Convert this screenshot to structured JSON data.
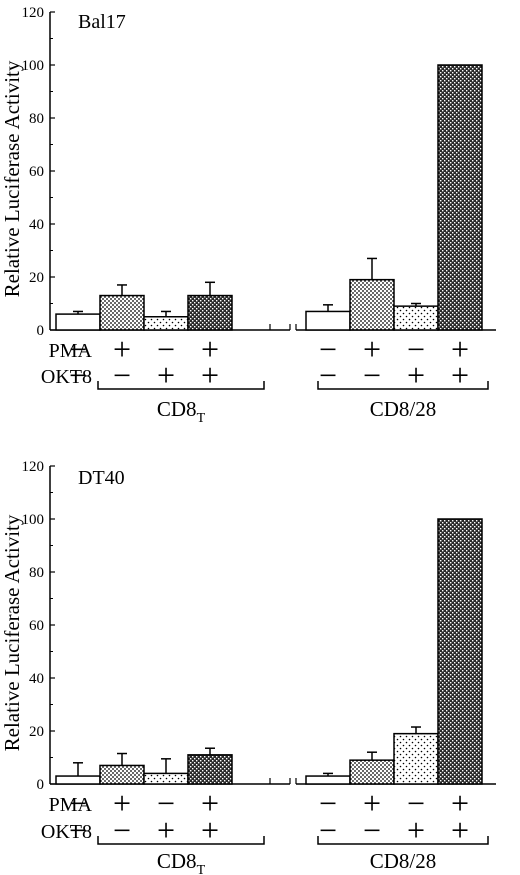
{
  "chart_data": [
    {
      "type": "bar",
      "title": "Bal17",
      "ylabel": "Relative Luciferase Activity",
      "ylim": [
        0,
        120
      ],
      "yticks": [
        0,
        20,
        40,
        60,
        80,
        100,
        120
      ],
      "row_labels": [
        "PMA",
        "OKT8"
      ],
      "groups": [
        {
          "name": "CD8",
          "subscript": "T",
          "bars": [
            {
              "value": 6,
              "error": 1,
              "pattern": "white",
              "pma": "−",
              "okt8": "−"
            },
            {
              "value": 13,
              "error": 4,
              "pattern": "dense-dots",
              "pma": "+",
              "okt8": "−"
            },
            {
              "value": 5,
              "error": 2,
              "pattern": "sparse-dots",
              "pma": "−",
              "okt8": "+"
            },
            {
              "value": 13,
              "error": 5,
              "pattern": "crosshatch",
              "pma": "+",
              "okt8": "+"
            }
          ]
        },
        {
          "name": "CD8/28",
          "subscript": "",
          "bars": [
            {
              "value": 7,
              "error": 2.5,
              "pattern": "white",
              "pma": "−",
              "okt8": "−"
            },
            {
              "value": 19,
              "error": 8,
              "pattern": "dense-dots",
              "pma": "+",
              "okt8": "−"
            },
            {
              "value": 9,
              "error": 1,
              "pattern": "sparse-dots",
              "pma": "−",
              "okt8": "+"
            },
            {
              "value": 100,
              "error": 0,
              "pattern": "crosshatch",
              "pma": "+",
              "okt8": "+"
            }
          ]
        }
      ]
    },
    {
      "type": "bar",
      "title": "DT40",
      "ylabel": "Relative Luciferase Activity",
      "ylim": [
        0,
        120
      ],
      "yticks": [
        0,
        20,
        40,
        60,
        80,
        100,
        120
      ],
      "row_labels": [
        "PMA",
        "OKT8"
      ],
      "groups": [
        {
          "name": "CD8",
          "subscript": "T",
          "bars": [
            {
              "value": 3,
              "error": 5,
              "pattern": "white",
              "pma": "−",
              "okt8": "−"
            },
            {
              "value": 7,
              "error": 4.5,
              "pattern": "dense-dots",
              "pma": "+",
              "okt8": "−"
            },
            {
              "value": 4,
              "error": 5.5,
              "pattern": "sparse-dots",
              "pma": "−",
              "okt8": "+"
            },
            {
              "value": 11,
              "error": 2.5,
              "pattern": "crosshatch",
              "pma": "+",
              "okt8": "+"
            }
          ]
        },
        {
          "name": "CD8/28",
          "subscript": "",
          "bars": [
            {
              "value": 3,
              "error": 1,
              "pattern": "white",
              "pma": "−",
              "okt8": "−"
            },
            {
              "value": 9,
              "error": 3,
              "pattern": "dense-dots",
              "pma": "+",
              "okt8": "−"
            },
            {
              "value": 19,
              "error": 2.5,
              "pattern": "sparse-dots",
              "pma": "−",
              "okt8": "+"
            },
            {
              "value": 100,
              "error": 0,
              "pattern": "crosshatch",
              "pma": "+",
              "okt8": "+"
            }
          ]
        }
      ]
    }
  ]
}
